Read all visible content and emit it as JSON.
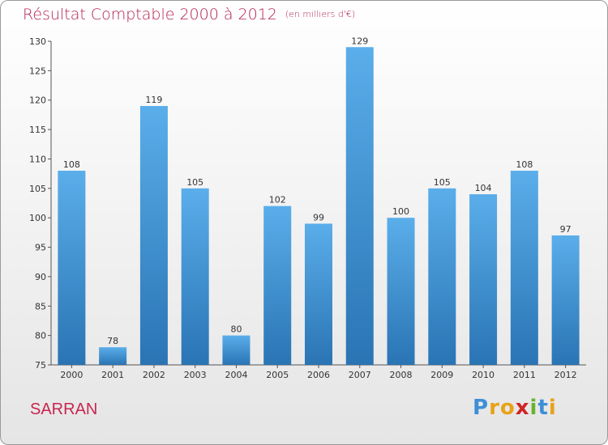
{
  "title": "Résultat Comptable 2000 à 2012",
  "subtitle": "(en milliers d'€)",
  "commune": "SARRAN",
  "logo": {
    "letters": [
      "P",
      "r",
      "o",
      "x",
      "i",
      "t",
      "i"
    ],
    "colors": [
      "#3d8fd6",
      "#e8a21a",
      "#e8a21a",
      "#d02424",
      "#69b22f",
      "#3d8fd6",
      "#e8a21a"
    ]
  },
  "colors": {
    "bar_top": "#5aaeea",
    "bar_bottom": "#2a74b4",
    "title": "#b5224f"
  },
  "chart_data": {
    "type": "bar",
    "title": "Résultat Comptable 2000 à 2012",
    "subtitle": "(en milliers d'€)",
    "categories": [
      "2000",
      "2001",
      "2002",
      "2003",
      "2004",
      "2005",
      "2006",
      "2007",
      "2008",
      "2009",
      "2010",
      "2011",
      "2012"
    ],
    "values": [
      108,
      78,
      119,
      105,
      80,
      102,
      99,
      129,
      100,
      105,
      104,
      108,
      97
    ],
    "yticks": [
      75,
      80,
      85,
      90,
      95,
      100,
      105,
      110,
      115,
      120,
      125,
      130
    ],
    "ylim": [
      75,
      130
    ],
    "grid": false,
    "legend": "none"
  }
}
